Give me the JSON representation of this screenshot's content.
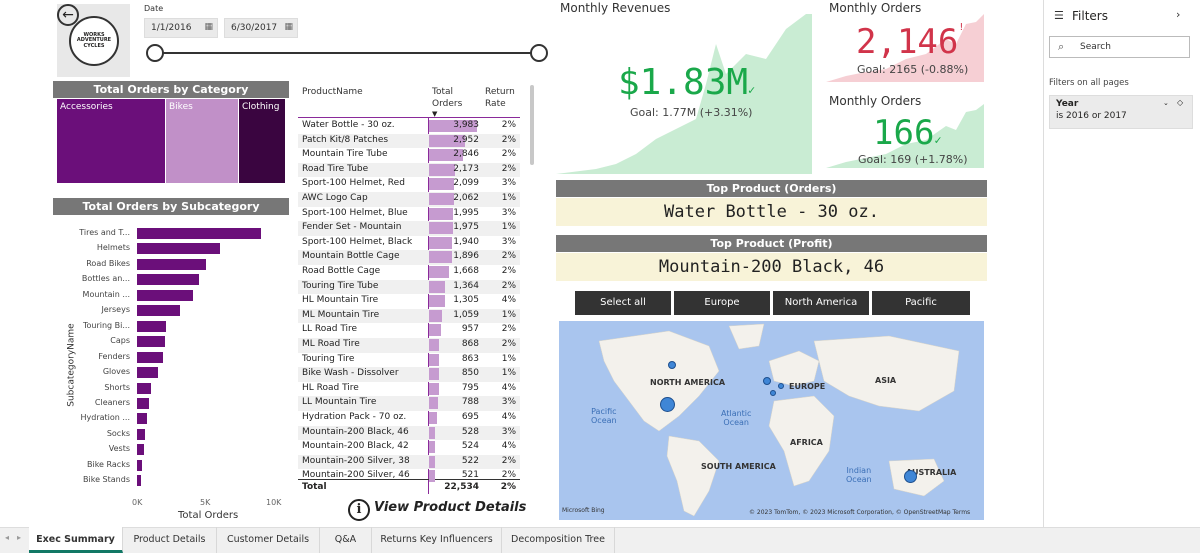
{
  "header": {
    "logo_text": [
      "WORKS",
      "ADVENTURE",
      "CYCLES"
    ],
    "date_label": "Date",
    "start_date": "1/1/2016",
    "end_date": "6/30/2017"
  },
  "category_chart": {
    "title": "Total Orders by Category",
    "tiles": [
      {
        "label": "Accessories",
        "color": "#6b0f7a"
      },
      {
        "label": "Bikes",
        "color": "#c190c8"
      },
      {
        "label": "Clothing",
        "color": "#3a0540"
      }
    ]
  },
  "subcategory_chart": {
    "title": "Total Orders by Subcategory",
    "xlabel": "Total Orders",
    "ylabel": "SubcategoryName",
    "xticks": [
      "0K",
      "5K",
      "10K"
    ]
  },
  "chart_data": {
    "type": "bar",
    "orientation": "horizontal",
    "categories": [
      "Tires and T...",
      "Helmets",
      "Road Bikes",
      "Bottles an...",
      "Mountain ...",
      "Jerseys",
      "Touring Bi...",
      "Caps",
      "Fenders",
      "Gloves",
      "Shorts",
      "Cleaners",
      "Hydration ...",
      "Socks",
      "Vests",
      "Bike Racks",
      "Bike Stands"
    ],
    "values": [
      9500,
      6300,
      5300,
      4700,
      4300,
      3300,
      2200,
      2100,
      2000,
      1600,
      1100,
      900,
      750,
      600,
      550,
      350,
      280
    ],
    "xlim": [
      0,
      10000
    ],
    "color": "#6b0f7a"
  },
  "product_table": {
    "headers": {
      "name": "ProductName",
      "orders": "Total Orders",
      "rate": "Return Rate"
    },
    "max_orders": 3983,
    "rows": [
      {
        "name": "Water Bottle - 30 oz.",
        "orders": "3,983",
        "value": 3983,
        "rate": "2%"
      },
      {
        "name": "Patch Kit/8 Patches",
        "orders": "2,952",
        "value": 2952,
        "rate": "2%"
      },
      {
        "name": "Mountain Tire Tube",
        "orders": "2,846",
        "value": 2846,
        "rate": "2%"
      },
      {
        "name": "Road Tire Tube",
        "orders": "2,173",
        "value": 2173,
        "rate": "2%"
      },
      {
        "name": "Sport-100 Helmet, Red",
        "orders": "2,099",
        "value": 2099,
        "rate": "3%"
      },
      {
        "name": "AWC Logo Cap",
        "orders": "2,062",
        "value": 2062,
        "rate": "1%"
      },
      {
        "name": "Sport-100 Helmet, Blue",
        "orders": "1,995",
        "value": 1995,
        "rate": "3%"
      },
      {
        "name": "Fender Set - Mountain",
        "orders": "1,975",
        "value": 1975,
        "rate": "1%"
      },
      {
        "name": "Sport-100 Helmet, Black",
        "orders": "1,940",
        "value": 1940,
        "rate": "3%"
      },
      {
        "name": "Mountain Bottle Cage",
        "orders": "1,896",
        "value": 1896,
        "rate": "2%"
      },
      {
        "name": "Road Bottle Cage",
        "orders": "1,668",
        "value": 1668,
        "rate": "2%"
      },
      {
        "name": "Touring Tire Tube",
        "orders": "1,364",
        "value": 1364,
        "rate": "2%"
      },
      {
        "name": "HL Mountain Tire",
        "orders": "1,305",
        "value": 1305,
        "rate": "4%"
      },
      {
        "name": "ML Mountain Tire",
        "orders": "1,059",
        "value": 1059,
        "rate": "1%"
      },
      {
        "name": "LL Road Tire",
        "orders": "957",
        "value": 957,
        "rate": "2%"
      },
      {
        "name": "ML Road Tire",
        "orders": "868",
        "value": 868,
        "rate": "2%"
      },
      {
        "name": "Touring Tire",
        "orders": "863",
        "value": 863,
        "rate": "1%"
      },
      {
        "name": "Bike Wash - Dissolver",
        "orders": "850",
        "value": 850,
        "rate": "1%"
      },
      {
        "name": "HL Road Tire",
        "orders": "795",
        "value": 795,
        "rate": "4%"
      },
      {
        "name": "LL Mountain Tire",
        "orders": "788",
        "value": 788,
        "rate": "3%"
      },
      {
        "name": "Hydration Pack - 70 oz.",
        "orders": "695",
        "value": 695,
        "rate": "4%"
      },
      {
        "name": "Mountain-200 Black, 46",
        "orders": "528",
        "value": 528,
        "rate": "3%"
      },
      {
        "name": "Mountain-200 Black, 42",
        "orders": "524",
        "value": 524,
        "rate": "4%"
      },
      {
        "name": "Mountain-200 Silver, 38",
        "orders": "522",
        "value": 522,
        "rate": "2%"
      },
      {
        "name": "Mountain-200 Silver, 46",
        "orders": "521",
        "value": 521,
        "rate": "2%"
      }
    ],
    "total_label": "Total",
    "total_orders": "22,534",
    "total_rate": "2%",
    "details_link": "View Product Details"
  },
  "revenues": {
    "title": "Monthly Revenues",
    "value": "$1.83M",
    "check": "✓",
    "goal": "Goal: 1.77M (+3.31%)",
    "color": "#1aa84a"
  },
  "orders": {
    "title": "Monthly Orders",
    "value": "2,146",
    "mark": "!",
    "goal": "Goal: 2165 (-0.88%)",
    "color": "#d1344a"
  },
  "orders2": {
    "title": "Monthly Orders",
    "value": "166",
    "check": "✓",
    "goal": "Goal: 169 (+1.78%)",
    "color": "#1aa84a"
  },
  "top_orders": {
    "title": "Top Product (Orders)",
    "value": "Water Bottle - 30 oz."
  },
  "top_profit": {
    "title": "Top Product (Profit)",
    "value": "Mountain-200 Black, 46"
  },
  "regions": [
    "Select all",
    "Europe",
    "North America",
    "Pacific"
  ],
  "map": {
    "continents": [
      "NORTH AMERICA",
      "EUROPE",
      "ASIA",
      "AFRICA",
      "SOUTH AMERICA",
      "AUSTRALIA"
    ],
    "oceans": [
      "Pacific\nOcean",
      "Atlantic\nOcean",
      "Indian\nOcean"
    ],
    "attribution": "© 2023 TomTom, © 2023 Microsoft Corporation, © OpenStreetMap  Terms",
    "bing": "Microsoft Bing"
  },
  "filters": {
    "title": "Filters",
    "search_placeholder": "Search",
    "section": "Filters on all pages",
    "card_title": "Year",
    "card_value": "is 2016 or 2017"
  },
  "tabs": [
    "Exec Summary",
    "Product Details",
    "Customer Details",
    "Q&A",
    "Returns Key Influencers",
    "Decomposition Tree"
  ]
}
